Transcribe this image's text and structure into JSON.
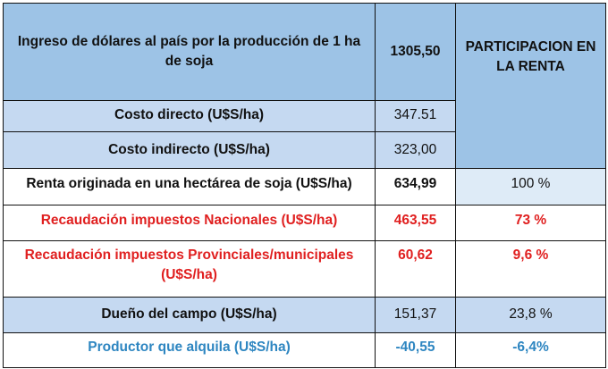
{
  "header": {
    "title": "Ingreso de dólares al país por la producción de 1 ha de soja",
    "value": "1305,50",
    "participation": "PARTICIPACION EN LA RENTA"
  },
  "rows": [
    {
      "label": "Costo directo (U$S/ha)",
      "value": "347.51",
      "share": ""
    },
    {
      "label": "Costo indirecto (U$S/ha)",
      "value": "323,00",
      "share": ""
    },
    {
      "label": "Renta originada en una hectárea de soja (U$S/ha)",
      "value": "634,99",
      "share": "100 %"
    },
    {
      "label": "Recaudación impuestos Nacionales (U$S/ha)",
      "value": "463,55",
      "share": "73 %"
    },
    {
      "label": "Recaudación impuestos Provinciales/municipales (U$S/ha)",
      "value": "60,62",
      "share": "9,6 %"
    },
    {
      "label": "Dueño del campo (U$S/ha)",
      "value": "151,37",
      "share": "23,8 %"
    },
    {
      "label": "Productor que alquila (U$S/ha)",
      "value": "-40,55",
      "share": "-6,4%"
    }
  ],
  "colors": {
    "header_bg": "#9dc3e6",
    "cost_bg": "#c5d9f1",
    "highlight_bg": "#deebf7",
    "tax_text": "#e02020",
    "renter_text": "#2e86c1"
  }
}
